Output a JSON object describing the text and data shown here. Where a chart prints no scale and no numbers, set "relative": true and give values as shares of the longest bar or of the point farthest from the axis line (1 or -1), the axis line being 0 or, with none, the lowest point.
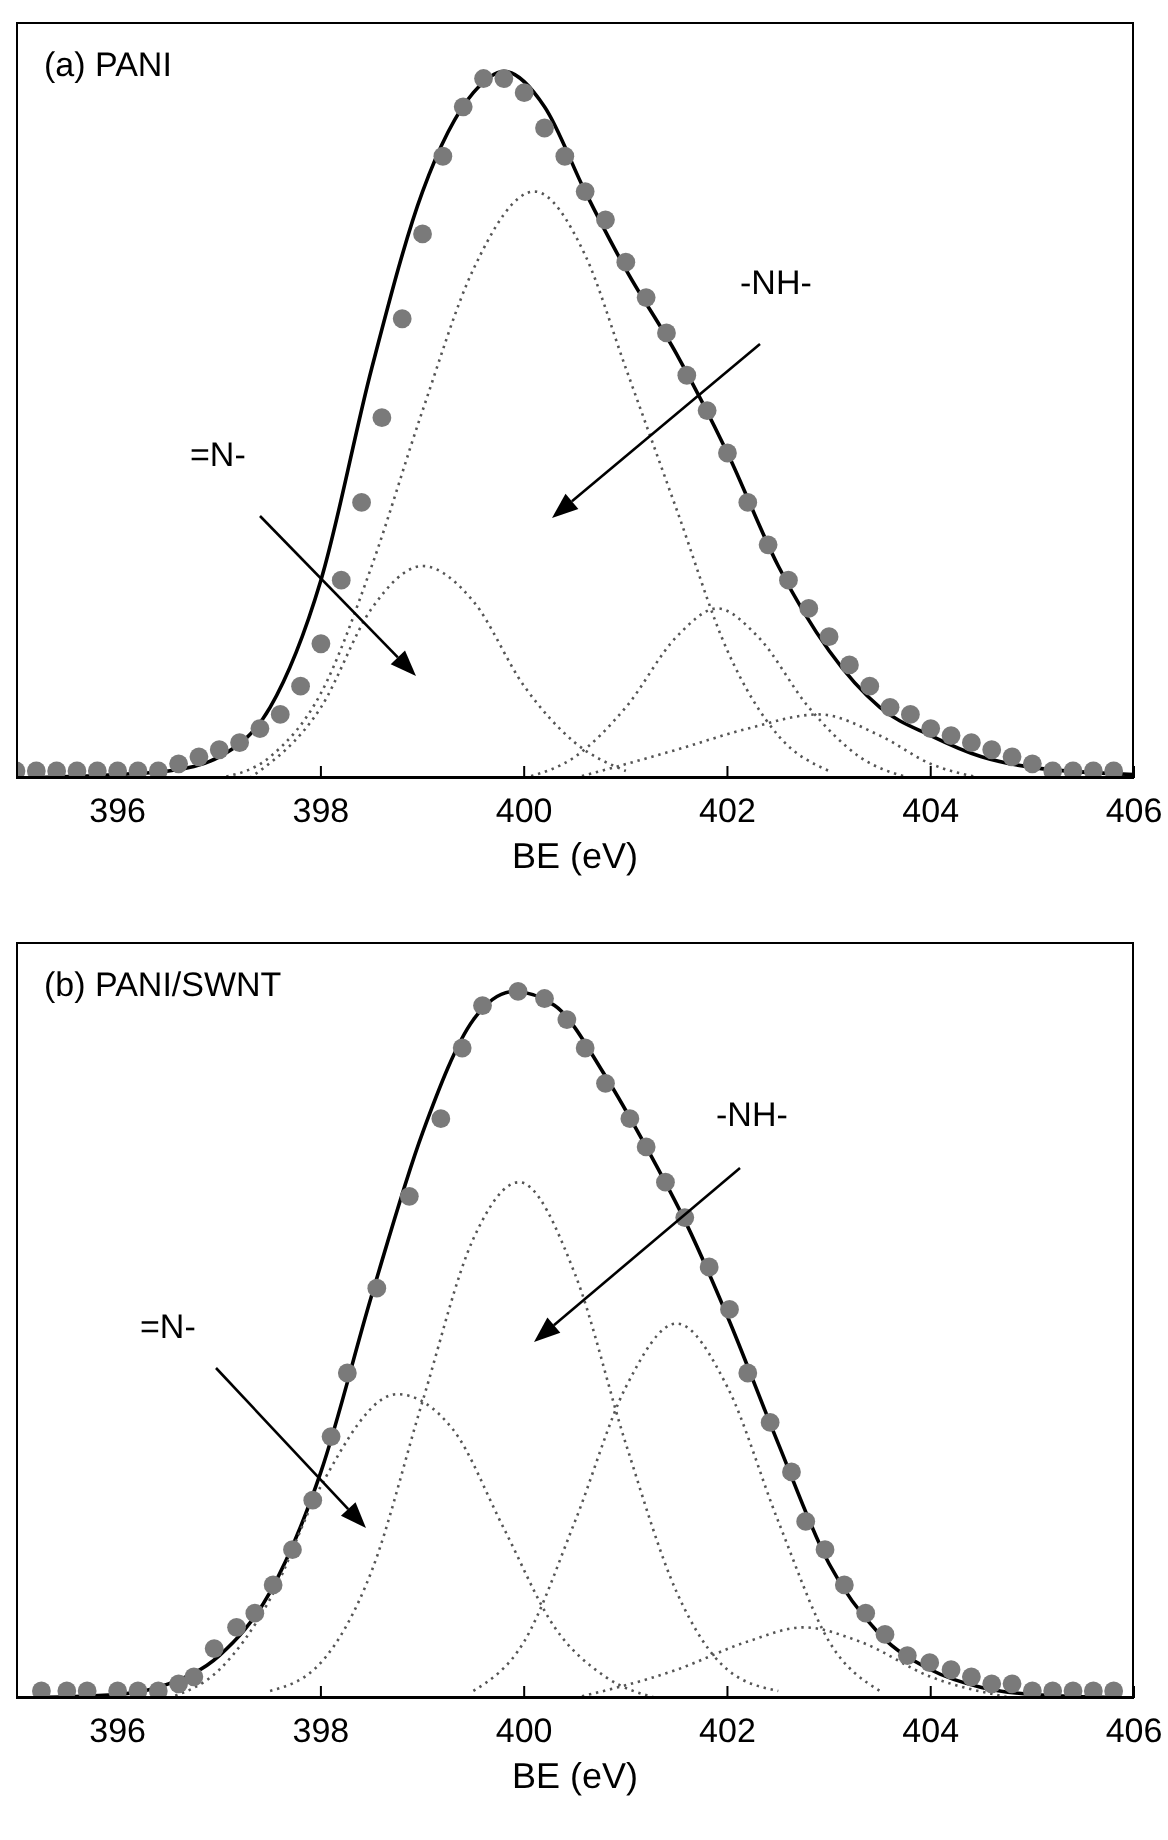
{
  "chart_data": [
    {
      "type": "line",
      "title": "(a) PANI",
      "xlabel": "BE (eV)",
      "relative": true,
      "xlim": [
        395,
        406
      ],
      "xticks": [
        396,
        398,
        400,
        402,
        404,
        406
      ],
      "tick_labels": "x",
      "annotations": [
        "=N-",
        "-NH-"
      ],
      "series": [
        {
          "type": "scatter",
          "color": "#7a7a7a",
          "marker": "circle",
          "x": [
            395.0,
            395.2,
            395.4,
            395.6,
            395.8,
            396.0,
            396.2,
            396.4,
            396.6,
            396.8,
            397.0,
            397.2,
            397.4,
            397.6,
            397.8,
            398.0,
            398.2,
            398.4,
            398.6,
            398.8,
            399.0,
            399.2,
            399.4,
            399.6,
            399.8,
            400.0,
            400.2,
            400.4,
            400.6,
            400.8,
            401.0,
            401.2,
            401.4,
            401.6,
            401.8,
            402.0,
            402.2,
            402.4,
            402.6,
            402.8,
            403.0,
            403.2,
            403.4,
            403.6,
            403.8,
            404.0,
            404.2,
            404.4,
            404.6,
            404.8,
            405.0,
            405.2,
            405.4,
            405.6,
            405.8
          ],
          "values": [
            0.01,
            0.01,
            0.01,
            0.01,
            0.01,
            0.01,
            0.01,
            0.01,
            0.02,
            0.03,
            0.04,
            0.05,
            0.07,
            0.09,
            0.13,
            0.19,
            0.28,
            0.39,
            0.51,
            0.65,
            0.77,
            0.88,
            0.95,
            0.99,
            0.99,
            0.97,
            0.92,
            0.88,
            0.83,
            0.79,
            0.73,
            0.68,
            0.63,
            0.57,
            0.52,
            0.46,
            0.39,
            0.33,
            0.28,
            0.24,
            0.2,
            0.16,
            0.13,
            0.1,
            0.09,
            0.07,
            0.06,
            0.05,
            0.04,
            0.03,
            0.02,
            0.01,
            0.01,
            0.01,
            0.01
          ]
        },
        {
          "type": "line",
          "color": "#000000",
          "line_style": "solid",
          "x": [
            395,
            396,
            396.5,
            397,
            397.5,
            398,
            398.5,
            399,
            399.5,
            399.8,
            400.2,
            400.6,
            401,
            401.5,
            402,
            402.5,
            403,
            403.5,
            404,
            404.5,
            405,
            406
          ],
          "values": [
            0,
            0.005,
            0.01,
            0.03,
            0.1,
            0.28,
            0.58,
            0.83,
            0.97,
            1.0,
            0.95,
            0.83,
            0.72,
            0.6,
            0.46,
            0.3,
            0.18,
            0.1,
            0.06,
            0.03,
            0.015,
            0.005
          ]
        },
        {
          "type": "line",
          "color": "#555555",
          "line_style": "dotted",
          "x": [
            397,
            397.5,
            398,
            398.5,
            399,
            399.5,
            400.1,
            400.6,
            401,
            401.5,
            402,
            402.5,
            403
          ],
          "values": [
            0,
            0.03,
            0.12,
            0.3,
            0.52,
            0.72,
            0.83,
            0.74,
            0.58,
            0.38,
            0.18,
            0.06,
            0.01
          ]
        },
        {
          "type": "line",
          "color": "#555555",
          "line_style": "dotted",
          "x": [
            397.3,
            398,
            398.5,
            399,
            399.5,
            400,
            400.5,
            401
          ],
          "values": [
            0,
            0.1,
            0.24,
            0.3,
            0.25,
            0.13,
            0.05,
            0.01
          ]
        },
        {
          "type": "line",
          "color": "#555555",
          "line_style": "dotted",
          "x": [
            400,
            400.5,
            401,
            401.5,
            401.9,
            402.3,
            402.8,
            403.3,
            403.8
          ],
          "values": [
            0,
            0.03,
            0.1,
            0.2,
            0.24,
            0.2,
            0.1,
            0.03,
            0
          ]
        },
        {
          "type": "line",
          "color": "#555555",
          "line_style": "dotted",
          "x": [
            400.5,
            401.5,
            402.2,
            402.9,
            403.5,
            404,
            404.5
          ],
          "values": [
            0,
            0.04,
            0.07,
            0.09,
            0.06,
            0.02,
            0
          ]
        }
      ]
    },
    {
      "type": "line",
      "title": "(b) PANI/SWNT",
      "xlabel": "BE (eV)",
      "relative": true,
      "xlim": [
        395,
        406
      ],
      "xticks": [
        396,
        398,
        400,
        402,
        404,
        406
      ],
      "tick_labels": "x",
      "annotations": [
        "=N-",
        "-NH-"
      ],
      "series": [
        {
          "type": "scatter",
          "color": "#7a7a7a",
          "marker": "circle",
          "x": [
            395.25,
            395.5,
            395.7,
            396.0,
            396.2,
            396.4,
            396.6,
            396.75,
            396.95,
            397.17,
            397.35,
            397.53,
            397.72,
            397.92,
            398.1,
            398.26,
            398.55,
            398.87,
            399.18,
            399.39,
            399.59,
            399.94,
            400.2,
            400.42,
            400.6,
            400.8,
            401.04,
            401.2,
            401.39,
            401.58,
            401.82,
            402.02,
            402.2,
            402.42,
            402.63,
            402.77,
            402.96,
            403.15,
            403.36,
            403.55,
            403.77,
            403.99,
            404.2,
            404.4,
            404.6,
            404.8,
            405.0,
            405.2,
            405.4,
            405.6,
            405.8
          ],
          "values": [
            0.01,
            0.01,
            0.01,
            0.01,
            0.01,
            0.01,
            0.02,
            0.03,
            0.07,
            0.1,
            0.12,
            0.16,
            0.21,
            0.28,
            0.37,
            0.46,
            0.58,
            0.71,
            0.82,
            0.92,
            0.98,
            1.0,
            0.99,
            0.96,
            0.92,
            0.87,
            0.82,
            0.78,
            0.73,
            0.68,
            0.61,
            0.55,
            0.46,
            0.39,
            0.32,
            0.25,
            0.21,
            0.16,
            0.12,
            0.09,
            0.06,
            0.05,
            0.04,
            0.03,
            0.02,
            0.02,
            0.01,
            0.01,
            0.01,
            0.01,
            0.01
          ]
        },
        {
          "type": "line",
          "color": "#000000",
          "line_style": "solid",
          "x": [
            395,
            396,
            396.5,
            397,
            397.5,
            398,
            398.5,
            399,
            399.5,
            399.9,
            400.3,
            400.8,
            401.2,
            401.6,
            402,
            402.5,
            403,
            403.5,
            404,
            404.5,
            405,
            406
          ],
          "values": [
            0,
            0.005,
            0.02,
            0.06,
            0.15,
            0.32,
            0.57,
            0.8,
            0.96,
            1.0,
            0.98,
            0.88,
            0.78,
            0.67,
            0.54,
            0.36,
            0.19,
            0.09,
            0.04,
            0.015,
            0.005,
            0
          ]
        },
        {
          "type": "line",
          "color": "#555555",
          "line_style": "dotted",
          "x": [
            397.5,
            398,
            398.5,
            399,
            399.5,
            399.95,
            400.5,
            401,
            401.5,
            402,
            402.5
          ],
          "values": [
            0.01,
            0.05,
            0.18,
            0.42,
            0.65,
            0.73,
            0.6,
            0.36,
            0.15,
            0.04,
            0.01
          ]
        },
        {
          "type": "line",
          "color": "#555555",
          "line_style": "dotted",
          "x": [
            396.5,
            397,
            397.5,
            398,
            398.75,
            399.3,
            399.8,
            400.3,
            400.8,
            401.3
          ],
          "values": [
            0,
            0.04,
            0.14,
            0.3,
            0.43,
            0.38,
            0.24,
            0.1,
            0.03,
            0
          ]
        },
        {
          "type": "line",
          "color": "#555555",
          "line_style": "dotted",
          "x": [
            399.5,
            400,
            400.5,
            401,
            401.5,
            402,
            402.5,
            403,
            403.5
          ],
          "values": [
            0.01,
            0.08,
            0.25,
            0.44,
            0.53,
            0.44,
            0.25,
            0.08,
            0.01
          ]
        },
        {
          "type": "line",
          "color": "#555555",
          "line_style": "dotted",
          "x": [
            400.5,
            401.5,
            402.2,
            402.75,
            403.3,
            404,
            404.8
          ],
          "values": [
            0,
            0.04,
            0.08,
            0.1,
            0.08,
            0.03,
            0
          ]
        }
      ]
    }
  ]
}
